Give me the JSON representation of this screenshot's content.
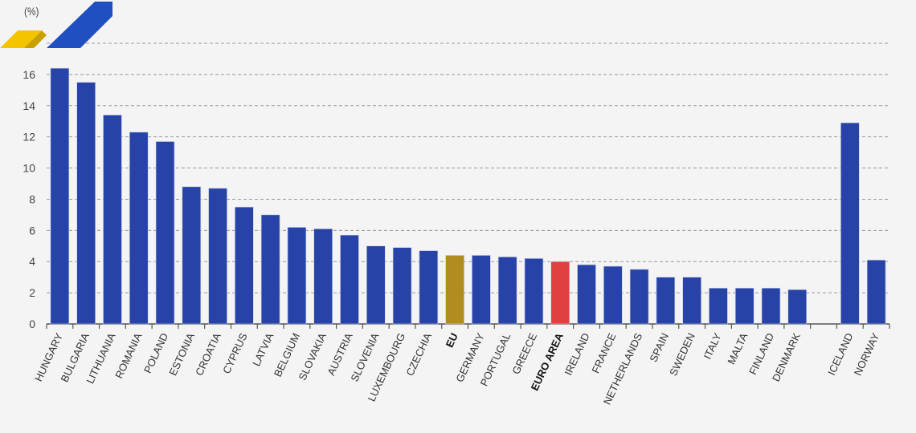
{
  "chart_data": {
    "type": "bar",
    "title": "",
    "ylabel": "(%)",
    "xlabel": "",
    "ylim": [
      0,
      18
    ],
    "yticks": [
      0,
      2,
      4,
      6,
      8,
      10,
      12,
      14,
      16,
      18
    ],
    "grid": true,
    "categories": [
      "HUNGARY",
      "BULGARIA",
      "LITHUANIA",
      "ROMANIA",
      "POLAND",
      "ESTONIA",
      "CROATIA",
      "CYPRUS",
      "LATVIA",
      "BELGIUM",
      "SLOVAKIA",
      "AUSTRIA",
      "SLOVENIA",
      "LUXEMBOURG",
      "CZECHIA",
      "EU",
      "GERMANY",
      "PORTUGAL",
      "GREECE",
      "EURO AREA",
      "IRELAND",
      "FRANCE",
      "NETHERLANDS",
      "SPAIN",
      "SWEDEN",
      "ITALY",
      "MALTA",
      "FINLAND",
      "DENMARK",
      "ICELAND",
      "NORWAY"
    ],
    "values": [
      16.4,
      15.5,
      13.4,
      12.3,
      11.7,
      8.8,
      8.7,
      7.5,
      7.0,
      6.2,
      6.1,
      5.7,
      5.0,
      4.9,
      4.7,
      4.4,
      4.4,
      4.3,
      4.2,
      4.0,
      3.8,
      3.7,
      3.5,
      3.0,
      3.0,
      2.3,
      2.3,
      2.3,
      2.2,
      12.9,
      4.1
    ],
    "highlight": {
      "EU": "#b08d1e",
      "EURO AREA": "#e04040"
    },
    "bold_categories": [
      "EU",
      "EURO AREA"
    ],
    "gap_before": "ICELAND"
  },
  "colors": {
    "bar": "#2743a8",
    "grid": "#999999",
    "axis": "#555555",
    "logo_yellow": "#f5c400",
    "logo_blue": "#1f4fc0"
  }
}
